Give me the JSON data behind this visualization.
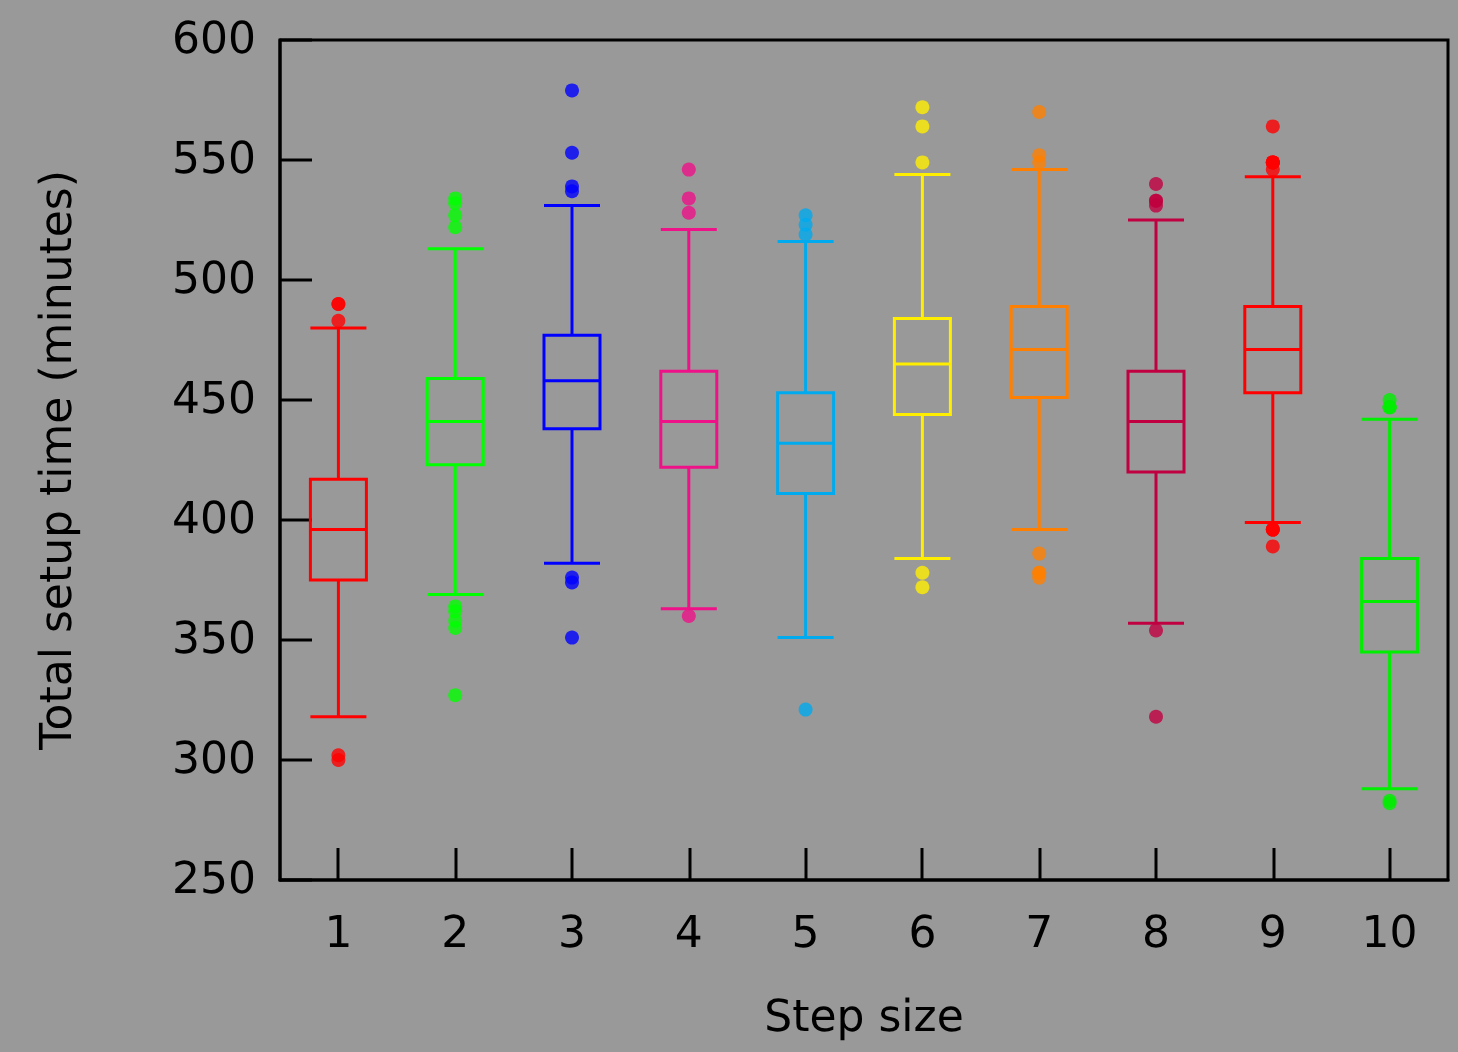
{
  "chart_data": {
    "type": "box",
    "xlabel": "Step size",
    "ylabel": "Total setup time (minutes)",
    "categories": [
      "1",
      "2",
      "3",
      "4",
      "5",
      "6",
      "7",
      "8",
      "9",
      "10"
    ],
    "colors": [
      "#ff0000",
      "#00ff00",
      "#0000ff",
      "#ee1188",
      "#00aaee",
      "#ffee00",
      "#ff8000",
      "#c00040",
      "#ff0000",
      "#00ee00"
    ],
    "boxes": [
      {
        "low": 318,
        "q1": 375,
        "median": 396,
        "q3": 417,
        "high": 480,
        "outliers": [
          490,
          490,
          483,
          302,
          300
        ]
      },
      {
        "low": 369,
        "q1": 423,
        "median": 441,
        "q3": 459,
        "high": 513,
        "outliers": [
          534,
          532,
          527,
          522,
          364,
          362,
          358,
          355,
          327
        ]
      },
      {
        "low": 382,
        "q1": 438,
        "median": 458,
        "q3": 477,
        "high": 531,
        "outliers": [
          579,
          553,
          539,
          537,
          376,
          374,
          351
        ]
      },
      {
        "low": 363,
        "q1": 422,
        "median": 441,
        "q3": 462,
        "high": 521,
        "outliers": [
          546,
          534,
          528,
          360
        ]
      },
      {
        "low": 351,
        "q1": 411,
        "median": 432,
        "q3": 453,
        "high": 516,
        "outliers": [
          527,
          523,
          519,
          321
        ]
      },
      {
        "low": 384,
        "q1": 444,
        "median": 465,
        "q3": 484,
        "high": 544,
        "outliers": [
          572,
          564,
          549,
          378,
          372
        ]
      },
      {
        "low": 396,
        "q1": 451,
        "median": 471,
        "q3": 489,
        "high": 546,
        "outliers": [
          570,
          552,
          549,
          386,
          378,
          378,
          376
        ]
      },
      {
        "low": 357,
        "q1": 420,
        "median": 441,
        "q3": 462,
        "high": 525,
        "outliers": [
          540,
          533,
          533,
          531,
          354,
          318
        ]
      },
      {
        "low": 399,
        "q1": 453,
        "median": 471,
        "q3": 489,
        "high": 543,
        "outliers": [
          564,
          549,
          549,
          549,
          549,
          546,
          396,
          396,
          396,
          389
        ]
      },
      {
        "low": 288,
        "q1": 345,
        "median": 366,
        "q3": 384,
        "high": 442,
        "outliers": [
          450,
          447,
          447,
          447,
          283,
          282
        ]
      }
    ],
    "ylim": [
      250,
      600
    ],
    "yticks": [
      250,
      300,
      350,
      400,
      450,
      500,
      550,
      600
    ],
    "grid": false
  }
}
